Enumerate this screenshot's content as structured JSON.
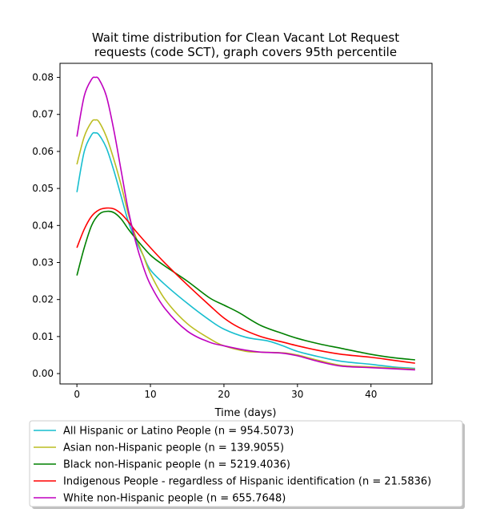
{
  "chart_data": {
    "type": "line",
    "title_lines": [
      "Wait time distribution  for Clean Vacant Lot Request",
      "requests (code SCT), graph covers 95th percentile"
    ],
    "xlabel": "Time (days)",
    "ylabel": "",
    "xlim": [
      -2.3,
      48.3
    ],
    "ylim": [
      -0.0028,
      0.0838
    ],
    "x_ticks": [
      0,
      10,
      20,
      30,
      40
    ],
    "x_tick_labels": [
      "0",
      "10",
      "20",
      "30",
      "40"
    ],
    "y_ticks": [
      0.0,
      0.01,
      0.02,
      0.03,
      0.04,
      0.05,
      0.06,
      0.07,
      0.08
    ],
    "y_tick_labels": [
      "0.00",
      "0.01",
      "0.02",
      "0.03",
      "0.04",
      "0.05",
      "0.06",
      "0.07",
      "0.08"
    ],
    "grid": false,
    "legend_position": "below",
    "series": [
      {
        "name": "All Hispanic or Latino People (n = 954.5073)",
        "color": "#17becf",
        "points": [
          [
            0,
            0.049
          ],
          [
            1,
            0.06
          ],
          [
            2,
            0.0645
          ],
          [
            2.5,
            0.065
          ],
          [
            3,
            0.0645
          ],
          [
            4,
            0.061
          ],
          [
            5,
            0.055
          ],
          [
            6,
            0.048
          ],
          [
            7,
            0.041
          ],
          [
            8,
            0.036
          ],
          [
            9,
            0.032
          ],
          [
            10,
            0.028
          ],
          [
            12,
            0.024
          ],
          [
            15,
            0.019
          ],
          [
            18,
            0.0145
          ],
          [
            20,
            0.012
          ],
          [
            23,
            0.0098
          ],
          [
            26,
            0.0088
          ],
          [
            28,
            0.0075
          ],
          [
            30,
            0.006
          ],
          [
            33,
            0.0045
          ],
          [
            36,
            0.0033
          ],
          [
            40,
            0.0025
          ],
          [
            43,
            0.0018
          ],
          [
            46,
            0.0014
          ]
        ]
      },
      {
        "name": "Asian non-Hispanic people (n = 139.9055)",
        "color": "#bcbd22",
        "points": [
          [
            0,
            0.0565
          ],
          [
            1,
            0.064
          ],
          [
            2,
            0.068
          ],
          [
            2.5,
            0.0685
          ],
          [
            3,
            0.068
          ],
          [
            4,
            0.064
          ],
          [
            5,
            0.058
          ],
          [
            6,
            0.051
          ],
          [
            7,
            0.043
          ],
          [
            8,
            0.037
          ],
          [
            9,
            0.032
          ],
          [
            10,
            0.027
          ],
          [
            12,
            0.02
          ],
          [
            15,
            0.0135
          ],
          [
            18,
            0.0095
          ],
          [
            20,
            0.0075
          ],
          [
            23,
            0.006
          ],
          [
            25,
            0.0058
          ],
          [
            28,
            0.0056
          ],
          [
            30,
            0.005
          ],
          [
            33,
            0.0035
          ],
          [
            36,
            0.0022
          ],
          [
            40,
            0.0018
          ],
          [
            43,
            0.0015
          ],
          [
            46,
            0.0012
          ]
        ]
      },
      {
        "name": "Black non-Hispanic people (n = 5219.4036)",
        "color": "#008000",
        "points": [
          [
            0,
            0.0265
          ],
          [
            1,
            0.034
          ],
          [
            2,
            0.04
          ],
          [
            3,
            0.043
          ],
          [
            4,
            0.0438
          ],
          [
            5,
            0.0435
          ],
          [
            6,
            0.0418
          ],
          [
            7,
            0.039
          ],
          [
            8,
            0.0365
          ],
          [
            10,
            0.032
          ],
          [
            12,
            0.029
          ],
          [
            15,
            0.025
          ],
          [
            18,
            0.0205
          ],
          [
            20,
            0.0185
          ],
          [
            22,
            0.0165
          ],
          [
            25,
            0.013
          ],
          [
            28,
            0.0108
          ],
          [
            30,
            0.0095
          ],
          [
            33,
            0.008
          ],
          [
            36,
            0.0068
          ],
          [
            40,
            0.0052
          ],
          [
            43,
            0.0043
          ],
          [
            46,
            0.0037
          ]
        ]
      },
      {
        "name": "Indigenous People - regardless of Hispanic identification (n = 21.5836)",
        "color": "#ff0000",
        "points": [
          [
            0,
            0.034
          ],
          [
            1,
            0.039
          ],
          [
            2,
            0.0425
          ],
          [
            3,
            0.0442
          ],
          [
            4,
            0.0447
          ],
          [
            5,
            0.0445
          ],
          [
            6,
            0.0432
          ],
          [
            7,
            0.041
          ],
          [
            8,
            0.0385
          ],
          [
            10,
            0.034
          ],
          [
            12,
            0.0298
          ],
          [
            15,
            0.024
          ],
          [
            18,
            0.0185
          ],
          [
            20,
            0.015
          ],
          [
            22,
            0.0125
          ],
          [
            25,
            0.01
          ],
          [
            28,
            0.0085
          ],
          [
            30,
            0.0075
          ],
          [
            33,
            0.0062
          ],
          [
            36,
            0.0052
          ],
          [
            40,
            0.0044
          ],
          [
            43,
            0.0036
          ],
          [
            46,
            0.0028
          ]
        ]
      },
      {
        "name": "White non-Hispanic people (n = 655.7648)",
        "color": "#bf00bf",
        "points": [
          [
            0,
            0.064
          ],
          [
            1,
            0.075
          ],
          [
            2,
            0.0795
          ],
          [
            2.5,
            0.08
          ],
          [
            3,
            0.0795
          ],
          [
            4,
            0.075
          ],
          [
            5,
            0.066
          ],
          [
            6,
            0.055
          ],
          [
            7,
            0.044
          ],
          [
            8,
            0.0355
          ],
          [
            9,
            0.029
          ],
          [
            10,
            0.024
          ],
          [
            12,
            0.0175
          ],
          [
            15,
            0.0115
          ],
          [
            18,
            0.0085
          ],
          [
            20,
            0.0075
          ],
          [
            23,
            0.0063
          ],
          [
            25,
            0.0058
          ],
          [
            28,
            0.0055
          ],
          [
            30,
            0.0048
          ],
          [
            33,
            0.0032
          ],
          [
            36,
            0.002
          ],
          [
            40,
            0.0016
          ],
          [
            43,
            0.0013
          ],
          [
            46,
            0.001
          ]
        ]
      }
    ]
  }
}
